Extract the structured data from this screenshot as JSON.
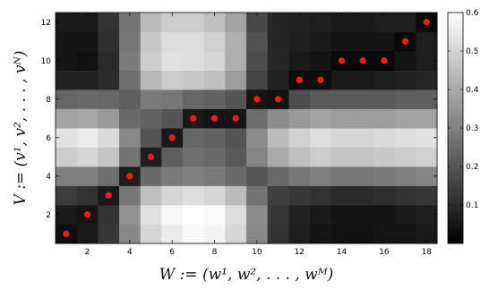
{
  "chart_data": {
    "type": "heatmap",
    "xlabel": "W := (w¹, w², . . . , wᴹ)",
    "ylabel": "V := (v¹, v², . . . , vᴺ)",
    "x_ticks": [
      2,
      4,
      6,
      8,
      10,
      12,
      14,
      16,
      18
    ],
    "y_ticks": [
      2,
      4,
      6,
      8,
      10,
      12
    ],
    "xlim": [
      0.5,
      18.5
    ],
    "ylim": [
      0.5,
      12.5
    ],
    "colorbar": {
      "range": [
        0,
        0.6
      ],
      "ticks": [
        0.1,
        0.2,
        0.3,
        0.4,
        0.5,
        0.6
      ],
      "colormap": "gray"
    },
    "matrix_rows_y1_to_y12": [
      [
        0.03,
        0.06,
        0.13,
        0.32,
        0.5,
        0.55,
        0.58,
        0.57,
        0.5,
        0.32,
        0.12,
        0.07,
        0.05,
        0.04,
        0.04,
        0.05,
        0.05,
        0.06
      ],
      [
        0.06,
        0.05,
        0.12,
        0.34,
        0.53,
        0.58,
        0.6,
        0.59,
        0.52,
        0.33,
        0.13,
        0.08,
        0.06,
        0.05,
        0.05,
        0.05,
        0.06,
        0.07
      ],
      [
        0.14,
        0.12,
        0.06,
        0.28,
        0.45,
        0.5,
        0.52,
        0.5,
        0.44,
        0.27,
        0.15,
        0.13,
        0.12,
        0.1,
        0.1,
        0.11,
        0.12,
        0.13
      ],
      [
        0.3,
        0.3,
        0.26,
        0.07,
        0.25,
        0.29,
        0.3,
        0.29,
        0.25,
        0.2,
        0.25,
        0.28,
        0.3,
        0.28,
        0.28,
        0.29,
        0.3,
        0.31
      ],
      [
        0.48,
        0.5,
        0.46,
        0.27,
        0.07,
        0.22,
        0.26,
        0.25,
        0.21,
        0.31,
        0.4,
        0.45,
        0.48,
        0.46,
        0.46,
        0.47,
        0.48,
        0.49
      ],
      [
        0.53,
        0.55,
        0.51,
        0.32,
        0.2,
        0.06,
        0.24,
        0.23,
        0.2,
        0.33,
        0.44,
        0.49,
        0.52,
        0.5,
        0.5,
        0.51,
        0.52,
        0.53
      ],
      [
        0.38,
        0.39,
        0.36,
        0.25,
        0.23,
        0.2,
        0.06,
        0.05,
        0.05,
        0.26,
        0.33,
        0.36,
        0.38,
        0.37,
        0.37,
        0.37,
        0.38,
        0.38
      ],
      [
        0.24,
        0.25,
        0.24,
        0.22,
        0.29,
        0.28,
        0.24,
        0.23,
        0.2,
        0.05,
        0.04,
        0.18,
        0.21,
        0.21,
        0.21,
        0.21,
        0.22,
        0.22
      ],
      [
        0.08,
        0.08,
        0.1,
        0.26,
        0.43,
        0.48,
        0.47,
        0.45,
        0.37,
        0.16,
        0.08,
        0.03,
        0.03,
        0.06,
        0.06,
        0.07,
        0.08,
        0.09
      ],
      [
        0.05,
        0.04,
        0.1,
        0.29,
        0.48,
        0.53,
        0.52,
        0.5,
        0.41,
        0.18,
        0.09,
        0.06,
        0.05,
        0.02,
        0.02,
        0.02,
        0.05,
        0.07
      ],
      [
        0.05,
        0.05,
        0.11,
        0.28,
        0.47,
        0.52,
        0.52,
        0.49,
        0.41,
        0.19,
        0.09,
        0.07,
        0.06,
        0.05,
        0.05,
        0.05,
        0.02,
        0.07
      ],
      [
        0.06,
        0.06,
        0.12,
        0.27,
        0.44,
        0.48,
        0.48,
        0.45,
        0.38,
        0.17,
        0.09,
        0.08,
        0.07,
        0.06,
        0.06,
        0.07,
        0.07,
        0.02
      ]
    ],
    "path": {
      "color": "#ff1a1a",
      "x": [
        1,
        2,
        3,
        4,
        5,
        6,
        7,
        8,
        9,
        10,
        11,
        12,
        13,
        14,
        15,
        16,
        17,
        18
      ],
      "y": [
        1,
        2,
        3,
        4,
        5,
        6,
        7,
        7,
        7,
        8,
        8,
        9,
        9,
        10,
        10,
        10,
        11,
        12
      ]
    }
  }
}
